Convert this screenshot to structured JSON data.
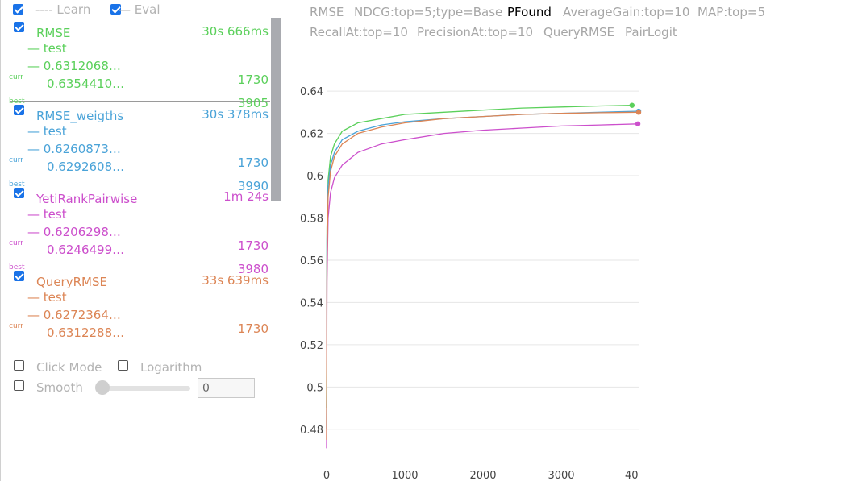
{
  "legend": {
    "learn_label": "---- Learn",
    "eval_label": "— Eval",
    "learn_checked": true,
    "eval_checked": true
  },
  "series": [
    {
      "name": "RMSE",
      "time": "30s 666ms",
      "color": "#5bd05b",
      "test_label": "— test",
      "learn_value": "— 0.6312068…",
      "curr_value": "0.6354410…",
      "curr_iter": "1730",
      "curr_label": "curr",
      "best_label": "best",
      "best_iter": "3905"
    },
    {
      "name": "RMSE_weigths",
      "time": "30s 378ms",
      "color": "#4aa3d8",
      "test_label": "— test",
      "learn_value": "— 0.6260873…",
      "curr_value": "0.6292608…",
      "curr_iter": "1730",
      "curr_label": "curr",
      "best_label": "best",
      "best_iter": "3990"
    },
    {
      "name": "YetiRankPairwise",
      "time": "1m 24s",
      "color": "#cc4fcc",
      "test_label": "— test",
      "learn_value": "— 0.6206298…",
      "curr_value": "0.6246499…",
      "curr_iter": "1730",
      "curr_label": "curr",
      "best_label": "best",
      "best_iter": "3980"
    },
    {
      "name": "QueryRMSE",
      "time": "33s 639ms",
      "color": "#dc8555",
      "test_label": "— test",
      "learn_value": "— 0.6272364…",
      "curr_value": "0.6312288…",
      "curr_iter": "1730",
      "curr_label": "curr"
    }
  ],
  "controls": {
    "click_mode": "Click Mode",
    "logarithm": "Logarithm",
    "smooth": "Smooth",
    "smooth_value": "0"
  },
  "tabs": [
    {
      "label": "RMSE",
      "active": false
    },
    {
      "label": "NDCG:top=5;type=Base",
      "active": false
    },
    {
      "label": "PFound",
      "active": true
    },
    {
      "label": "AverageGain:top=10",
      "active": false
    },
    {
      "label": "MAP:top=5",
      "active": false
    },
    {
      "label": "RecallAt:top=10",
      "active": false
    },
    {
      "label": "PrecisionAt:top=10",
      "active": false
    },
    {
      "label": "QueryRMSE",
      "active": false
    },
    {
      "label": "PairLogit",
      "active": false
    }
  ],
  "chart_data": {
    "type": "line",
    "title": "",
    "xlabel": "",
    "ylabel": "",
    "xlim": [
      0,
      4000
    ],
    "ylim": [
      0.47,
      0.645
    ],
    "x_ticks": [
      "0",
      "1000",
      "2000",
      "3000",
      "40"
    ],
    "y_ticks": [
      "0.48",
      "0.5",
      "0.52",
      "0.54",
      "0.56",
      "0.58",
      "0.6",
      "0.62",
      "0.64"
    ],
    "grid": true,
    "series": [
      {
        "name": "RMSE",
        "color": "#5bd05b",
        "x": [
          0,
          5,
          20,
          50,
          100,
          200,
          400,
          700,
          1000,
          1500,
          2000,
          2500,
          3000,
          3500,
          3905
        ],
        "y": [
          0.49,
          0.575,
          0.598,
          0.609,
          0.615,
          0.621,
          0.625,
          0.627,
          0.629,
          0.63,
          0.631,
          0.632,
          0.6325,
          0.633,
          0.6333
        ]
      },
      {
        "name": "RMSE_weigths",
        "color": "#4aa3d8",
        "x": [
          0,
          5,
          20,
          50,
          100,
          200,
          400,
          700,
          1000,
          1500,
          2000,
          2500,
          3000,
          3500,
          3990
        ],
        "y": [
          0.48,
          0.57,
          0.595,
          0.605,
          0.611,
          0.617,
          0.621,
          0.624,
          0.6255,
          0.627,
          0.628,
          0.629,
          0.6295,
          0.63,
          0.6305
        ]
      },
      {
        "name": "YetiRankPairwise",
        "color": "#cc4fcc",
        "x": [
          0,
          5,
          20,
          50,
          100,
          200,
          400,
          700,
          1000,
          1500,
          2000,
          2500,
          3000,
          3500,
          3980
        ],
        "y": [
          0.471,
          0.55,
          0.58,
          0.592,
          0.599,
          0.605,
          0.611,
          0.615,
          0.617,
          0.62,
          0.6215,
          0.6225,
          0.6235,
          0.624,
          0.6245
        ]
      },
      {
        "name": "QueryRMSE",
        "color": "#dc8555",
        "x": [
          0,
          5,
          20,
          50,
          100,
          200,
          400,
          700,
          1000,
          1500,
          2000,
          2500,
          3000,
          3500,
          3990
        ],
        "y": [
          0.475,
          0.56,
          0.59,
          0.602,
          0.609,
          0.615,
          0.62,
          0.623,
          0.625,
          0.627,
          0.628,
          0.629,
          0.6295,
          0.6298,
          0.63
        ]
      }
    ]
  }
}
